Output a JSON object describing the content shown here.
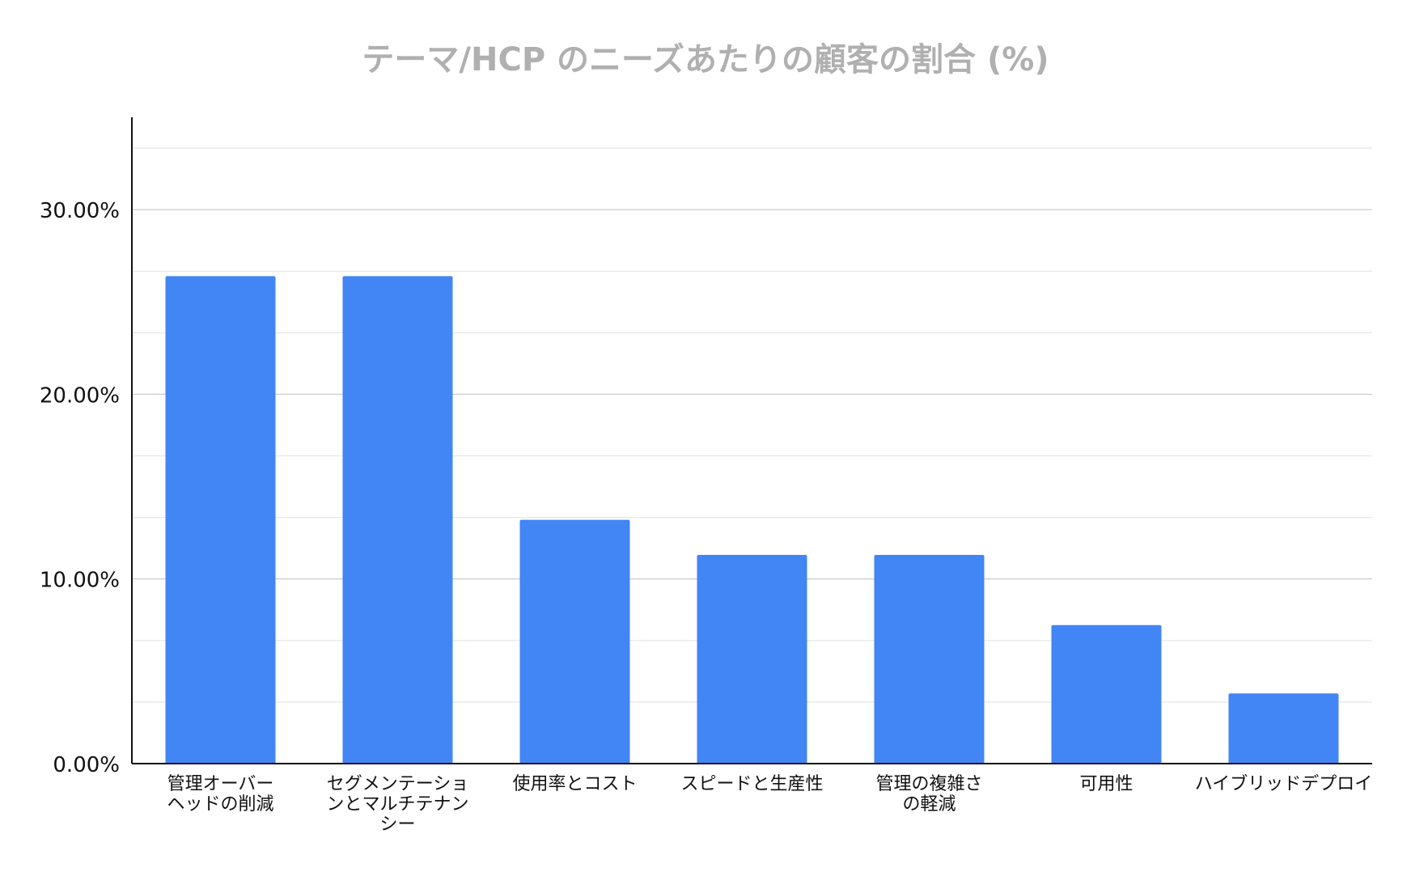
{
  "chart_data": {
    "type": "bar",
    "title": "テーマ/HCP のニーズあたりの顧客の割合 (%)",
    "xlabel": "",
    "ylabel": "",
    "categories": [
      [
        "管理オーバー",
        "ヘッドの削減"
      ],
      [
        "セグメンテーショ",
        "ンとマルチテナン",
        "シー"
      ],
      [
        "使用率とコスト"
      ],
      [
        "スピードと生産性"
      ],
      [
        "管理の複雑さ",
        "の軽減"
      ],
      [
        "可用性"
      ],
      [
        "ハイブリッドデプロイ"
      ]
    ],
    "values": [
      26.4,
      26.4,
      13.2,
      11.3,
      11.3,
      7.5,
      3.8
    ],
    "ylim": [
      0,
      35
    ],
    "yticks": [
      0,
      10,
      20,
      30
    ],
    "ytick_labels": [
      "0.00%",
      "10.00%",
      "20.00%",
      "30.00%"
    ],
    "minor_grid_step": 3.333,
    "grid": true,
    "legend": "none",
    "bar_color": "#4285f4"
  }
}
